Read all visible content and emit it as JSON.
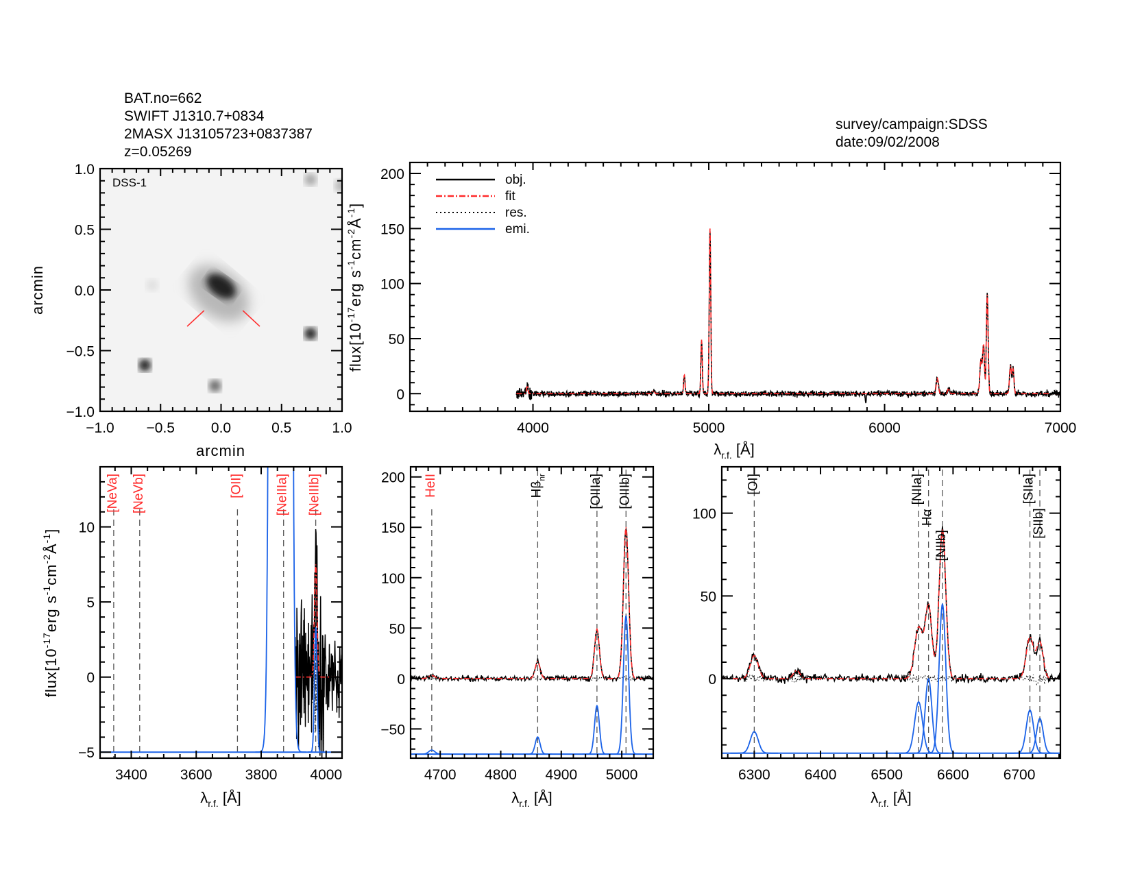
{
  "header": {
    "bat": "BAT.no=662",
    "swift": "SWIFT J1310.7+0834",
    "twomass": "2MASX J13105723+0837387",
    "redshift": "z=0.05269",
    "survey": "survey/campaign:SDSS",
    "date": "date:09/02/2008"
  },
  "colors": {
    "obj": "#000000",
    "fit": "#ff2a2a",
    "res": "#000000",
    "emi": "#1a62e8",
    "marker": "#555555",
    "red_label": "#ff2a2a"
  },
  "legend": [
    {
      "label": "obj.",
      "style": "solid",
      "color": "#000000"
    },
    {
      "label": "fit",
      "style": "dashdot",
      "color": "#ff2a2a"
    },
    {
      "label": "res.",
      "style": "dotted",
      "color": "#000000"
    },
    {
      "label": "emi.",
      "style": "solid",
      "color": "#1a62e8"
    }
  ],
  "axis_text": {
    "xlabel_main": "λ",
    "xlabel_sub": "r.f.",
    "xlabel_unit": " [Å]",
    "ylabel": [
      [
        "flux[10",
        ""
      ],
      [
        "-17",
        "sup"
      ],
      [
        "erg s",
        ""
      ],
      [
        "-1",
        "sup"
      ],
      [
        "cm",
        ""
      ],
      [
        "-2",
        "sup"
      ],
      [
        "Å",
        ""
      ],
      [
        "-1",
        "sup"
      ],
      [
        "]",
        ""
      ]
    ]
  },
  "spectrum": {
    "start": 3905,
    "lines": [
      {
        "name": "[NeIII]3968",
        "center": 3968,
        "amp": 7.5,
        "sigma": 4
      },
      {
        "name": "HeII",
        "center": 4686,
        "amp": 3,
        "sigma": 5
      },
      {
        "name": "Hβ",
        "center": 4861,
        "amp": 17,
        "sigma": 4
      },
      {
        "name": "[OIII]a",
        "center": 4959,
        "amp": 49,
        "sigma": 4
      },
      {
        "name": "[OIII]b",
        "center": 5007,
        "amp": 150,
        "sigma": 4.3
      },
      {
        "name": "[OI]",
        "center": 6300,
        "amp": 14,
        "sigma": 6
      },
      {
        "name": "[OI]6364",
        "center": 6364,
        "amp": 5,
        "sigma": 5
      },
      {
        "name": "[NII]a",
        "center": 6548,
        "amp": 31,
        "sigma": 6
      },
      {
        "name": "Hα",
        "center": 6563,
        "amp": 44,
        "sigma": 5
      },
      {
        "name": "[NII]b",
        "center": 6584,
        "amp": 90,
        "sigma": 5
      },
      {
        "name": "[SII]a",
        "center": 6716,
        "amp": 25,
        "sigma": 5.5
      },
      {
        "name": "[SII]b",
        "center": 6731,
        "amp": 22,
        "sigma": 5
      }
    ],
    "absorption": [
      {
        "name": "NaD",
        "center": 5893,
        "amp": -8,
        "sigma": 3
      }
    ]
  },
  "chart_data": [
    {
      "id": "image",
      "type": "image",
      "label": "DSS-1",
      "xlabel": "arcmin",
      "ylabel": "arcmin",
      "xlim": [
        -1,
        1
      ],
      "ylim": [
        -1,
        1
      ],
      "xticks": [
        -1,
        -0.5,
        0,
        0.5,
        1
      ],
      "xtick_labels": [
        "−1.0",
        "−0.5",
        "0.0",
        "0.5",
        "1.0"
      ],
      "yticks": [
        -1,
        -0.5,
        0,
        0.5,
        1
      ],
      "ytick_labels": [
        "−1.0",
        "−0.5",
        "0.0",
        "0.5",
        "1.0"
      ],
      "sources": [
        {
          "x": 0.0,
          "y": 0.03,
          "kind": "galaxy",
          "peak": 0.95
        },
        {
          "x": -0.63,
          "y": -0.62,
          "kind": "star",
          "peak": 0.9
        },
        {
          "x": 0.74,
          "y": -0.36,
          "kind": "star",
          "peak": 0.9
        },
        {
          "x": -0.05,
          "y": -0.79,
          "kind": "star",
          "peak": 0.6
        },
        {
          "x": 0.74,
          "y": 0.91,
          "kind": "star",
          "peak": 0.35
        },
        {
          "x": 0.99,
          "y": 0.86,
          "kind": "star",
          "peak": 0.3
        },
        {
          "x": -0.57,
          "y": 0.04,
          "kind": "star",
          "peak": 0.12
        }
      ],
      "marker": [
        [
          -0.14,
          -0.17,
          -0.28,
          -0.3
        ],
        [
          0.18,
          -0.17,
          0.32,
          -0.3
        ]
      ]
    },
    {
      "id": "overview",
      "type": "line",
      "xlim": [
        3300,
        7000
      ],
      "ylim": [
        -16,
        210
      ],
      "xticks": [
        4000,
        5000,
        6000,
        7000
      ],
      "yticks": [
        0,
        50,
        100,
        150,
        200
      ],
      "legend_position": "top-left",
      "markers": [],
      "emi": []
    },
    {
      "id": "left",
      "type": "line",
      "xlim": [
        3304,
        4049
      ],
      "ylim": [
        -5.4,
        14
      ],
      "xticks": [
        3400,
        3600,
        3800,
        4000
      ],
      "yticks": [
        -5,
        0,
        5,
        10
      ],
      "emi_baseline": -5,
      "emi": [
        {
          "center": 3860,
          "amp": 2000,
          "sigma": 13
        },
        {
          "center": 3968,
          "amp": 8.3,
          "sigma": 4
        }
      ],
      "markers": [
        {
          "label": "[NeVa]",
          "wave": 3346,
          "red": true
        },
        {
          "label": "[NeVb]",
          "wave": 3426,
          "red": true
        },
        {
          "label": "[OII]",
          "wave": 3727,
          "red": true
        },
        {
          "label": "[NeIIIa]",
          "wave": 3869,
          "red": true
        },
        {
          "label": "[NeIIIb]",
          "wave": 3968,
          "red": true
        }
      ]
    },
    {
      "id": "mid",
      "type": "line",
      "xlim": [
        4651,
        5052
      ],
      "ylim": [
        -79,
        210
      ],
      "xticks": [
        4700,
        4800,
        4900,
        5000
      ],
      "yticks": [
        -50,
        0,
        50,
        100,
        150,
        200
      ],
      "emi_baseline": -75,
      "emi": [
        {
          "center": 4686,
          "amp": 4,
          "sigma": 5
        },
        {
          "center": 4861,
          "amp": 17,
          "sigma": 4
        },
        {
          "center": 4959,
          "amp": 48,
          "sigma": 4
        },
        {
          "center": 5007,
          "amp": 137,
          "sigma": 4.3
        }
      ],
      "markers": [
        {
          "label": "HeII",
          "wave": 4686,
          "red": true
        },
        {
          "label": "Hβ",
          "sub": "nr",
          "wave": 4861,
          "red": false
        },
        {
          "label": "[OIIIa]",
          "wave": 4959,
          "red": false
        },
        {
          "label": "[OIIIb]",
          "wave": 5007,
          "red": false
        }
      ]
    },
    {
      "id": "right",
      "type": "line",
      "xlim": [
        6251,
        6762
      ],
      "ylim": [
        -48,
        128
      ],
      "xticks": [
        6300,
        6400,
        6500,
        6600,
        6700
      ],
      "yticks": [
        0,
        50,
        100
      ],
      "emi_baseline": -45,
      "emi": [
        {
          "center": 6300,
          "amp": 13,
          "sigma": 6
        },
        {
          "center": 6548,
          "amp": 31,
          "sigma": 6
        },
        {
          "center": 6563,
          "amp": 45,
          "sigma": 5
        },
        {
          "center": 6584,
          "amp": 90,
          "sigma": 5
        },
        {
          "center": 6716,
          "amp": 26,
          "sigma": 5.5
        },
        {
          "center": 6731,
          "amp": 21,
          "sigma": 5
        }
      ],
      "markers": [
        {
          "label": "[OI]",
          "wave": 6300,
          "red": false
        },
        {
          "label": "[NIIa]",
          "wave": 6548,
          "red": false
        },
        {
          "label": "Hα",
          "wave": 6563,
          "red": false
        },
        {
          "label": "[NIIb]",
          "wave": 6584,
          "red": false
        },
        {
          "label": "[SIIa]",
          "wave": 6716,
          "red": false
        },
        {
          "label": "[SIIb]",
          "wave": 6731,
          "red": false
        }
      ]
    }
  ]
}
